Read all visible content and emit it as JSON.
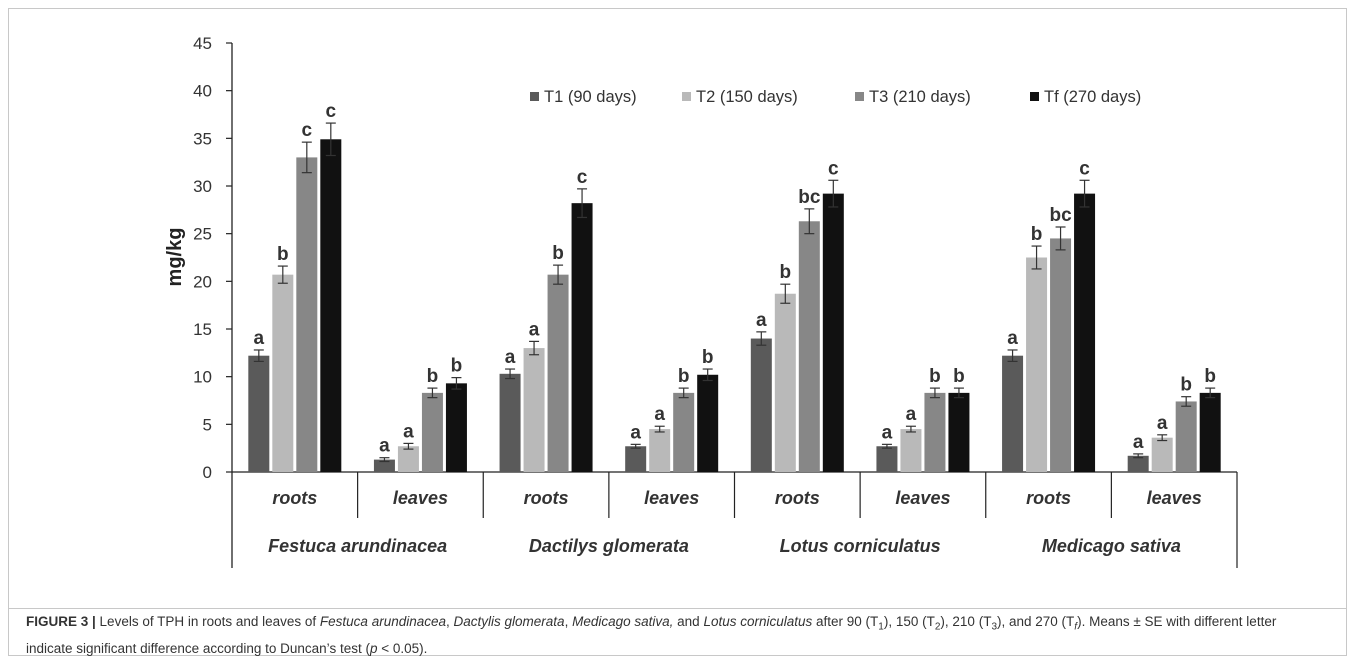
{
  "chart_data": {
    "type": "bar",
    "ylabel": "mg/kg",
    "ylim": [
      0,
      45
    ],
    "yticks": [
      0,
      5,
      10,
      15,
      20,
      25,
      30,
      35,
      40,
      45
    ],
    "legend_placement": "top-right",
    "groups": [
      {
        "species": "Festuca arundinacea",
        "tissues": [
          "roots",
          "leaves"
        ]
      },
      {
        "species": "Dactilys glomerata",
        "tissues": [
          "roots",
          "leaves"
        ]
      },
      {
        "species": "Lotus corniculatus",
        "tissues": [
          "roots",
          "leaves"
        ]
      },
      {
        "species": "Medicago sativa",
        "tissues": [
          "roots",
          "leaves"
        ]
      }
    ],
    "categories": [
      "roots",
      "leaves",
      "roots",
      "leaves",
      "roots",
      "leaves",
      "roots",
      "leaves"
    ],
    "series": [
      {
        "name": "T1 (90 days)",
        "color": "#5a5a5a",
        "values": [
          12.2,
          1.3,
          10.3,
          2.7,
          14.0,
          2.7,
          12.2,
          1.7
        ],
        "errors": [
          0.6,
          0.2,
          0.5,
          0.2,
          0.7,
          0.2,
          0.6,
          0.2
        ],
        "letters": [
          "a",
          "a",
          "a",
          "a",
          "a",
          "a",
          "a",
          "a"
        ]
      },
      {
        "name": "T2 (150 days)",
        "color": "#b9b9b9",
        "values": [
          20.7,
          2.7,
          13.0,
          4.5,
          18.7,
          4.5,
          22.5,
          3.6
        ],
        "errors": [
          0.9,
          0.3,
          0.7,
          0.3,
          1.0,
          0.3,
          1.2,
          0.3
        ],
        "letters": [
          "b",
          "a",
          "a",
          "a",
          "b",
          "a",
          "b",
          "a"
        ]
      },
      {
        "name": "T3 (210 days)",
        "color": "#878787",
        "values": [
          33.0,
          8.3,
          20.7,
          8.3,
          26.3,
          8.3,
          24.5,
          7.4
        ],
        "errors": [
          1.6,
          0.5,
          1.0,
          0.5,
          1.3,
          0.5,
          1.2,
          0.5
        ],
        "letters": [
          "c",
          "b",
          "b",
          "b",
          "bc",
          "b",
          "bc",
          "b"
        ]
      },
      {
        "name": "Tf (270 days)",
        "color": "#111111",
        "values": [
          34.9,
          9.3,
          28.2,
          10.2,
          29.2,
          8.3,
          29.2,
          8.3
        ],
        "errors": [
          1.7,
          0.6,
          1.5,
          0.6,
          1.4,
          0.5,
          1.4,
          0.5
        ],
        "letters": [
          "c",
          "b",
          "c",
          "b",
          "c",
          "b",
          "c",
          "b"
        ]
      }
    ]
  },
  "caption": {
    "label": "FIGURE 3 |",
    "parts": [
      {
        "t": " Levels of TPH in roots and leaves of ",
        "i": false
      },
      {
        "t": "Festuca arundinacea",
        "i": true
      },
      {
        "t": ", ",
        "i": false
      },
      {
        "t": "Dactylis glomerata",
        "i": true
      },
      {
        "t": ", ",
        "i": false
      },
      {
        "t": "Medicago sativa,",
        "i": true
      },
      {
        "t": " and ",
        "i": false
      },
      {
        "t": "Lotus corniculatus",
        "i": true
      },
      {
        "t": " after 90 (T",
        "i": false
      },
      {
        "t": "1",
        "sub": true
      },
      {
        "t": "), 150 (T",
        "i": false
      },
      {
        "t": "2",
        "sub": true
      },
      {
        "t": "), 210 (T",
        "i": false
      },
      {
        "t": "3",
        "sub": true
      },
      {
        "t": "), and 270 (T",
        "i": false
      },
      {
        "t": "f",
        "sub": true,
        "i": true
      },
      {
        "t": "). Means ± SE with different letter indicate significant difference according to Duncan’s test (",
        "i": false
      },
      {
        "t": "p",
        "i": true
      },
      {
        "t": " < 0.05).",
        "i": false
      }
    ]
  }
}
